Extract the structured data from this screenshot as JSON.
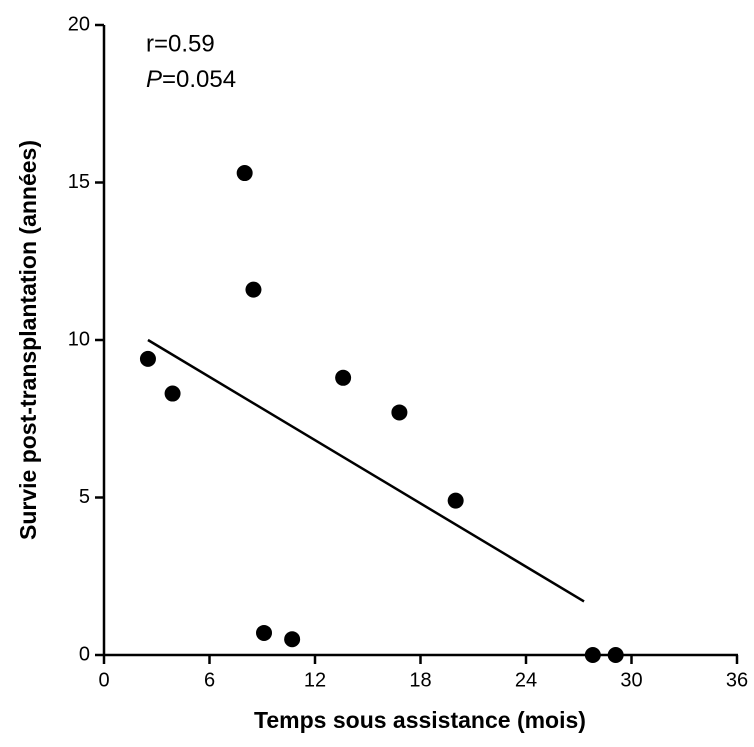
{
  "chart_data": {
    "type": "scatter",
    "xlabel": "Temps sous assistance (mois)",
    "ylabel": "Survie post-transplantation (années)",
    "annotations": [
      "r=0.59",
      "P=0.054"
    ],
    "x": [
      2.5,
      3.9,
      8.0,
      8.5,
      9.1,
      10.7,
      13.6,
      16.8,
      20.0,
      27.8,
      29.1
    ],
    "values": [
      9.4,
      8.3,
      15.3,
      11.6,
      0.7,
      0.5,
      8.8,
      7.7,
      4.9,
      0,
      0
    ],
    "color": "#000000",
    "fit": {
      "x": [
        2.5,
        27.3
      ],
      "values": [
        10.0,
        1.7
      ]
    },
    "xlim": [
      0,
      36
    ],
    "xticks": [
      0,
      6,
      12,
      18,
      24,
      30,
      36
    ],
    "ylim": [
      0,
      20
    ],
    "yticks": [
      0,
      5,
      10,
      15,
      20
    ],
    "grid": false
  }
}
